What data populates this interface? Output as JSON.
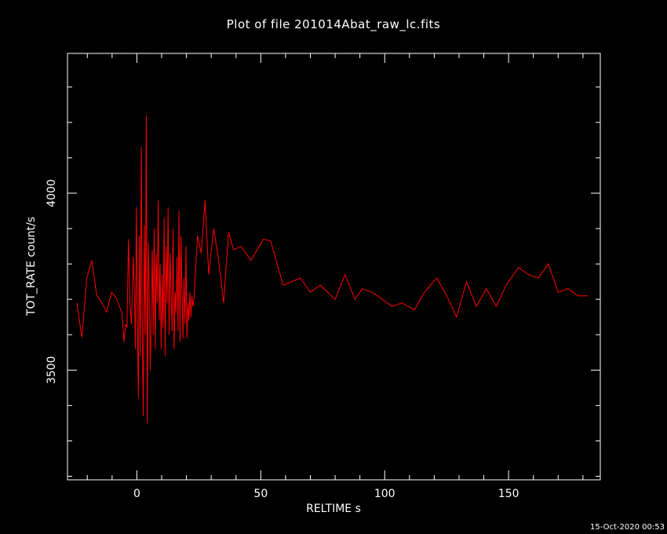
{
  "chart_data": {
    "type": "line",
    "title": "Plot of file 201014Abat_raw_lc.fits",
    "xlabel": "RELTIME   s",
    "ylabel": "TOT_RATE   count/s",
    "xlim": [
      -28,
      187
    ],
    "ylim": [
      3190,
      4395
    ],
    "xticks_major": [
      0,
      50,
      100,
      150
    ],
    "xtick_labels": [
      "0",
      "50",
      "100",
      "150"
    ],
    "yticks_major": [
      3500,
      4000
    ],
    "ytick_labels": [
      "3500",
      "4000"
    ],
    "grid": false,
    "line_color": "#ff0000",
    "background": "#000000",
    "axis_color": "#ffffff",
    "series": [
      {
        "x": [
          -24.2,
          -22.2,
          -20.2,
          -18.2,
          -16.2,
          -14.2,
          -12.2,
          -10.2,
          -8.2,
          -7.0,
          -6.0,
          -5.2,
          -4.5,
          -4.0,
          -3.4,
          -2.8,
          -2.2,
          -1.5,
          -1.0,
          -0.6,
          -0.2,
          0.2,
          0.6,
          1.0,
          1.4,
          1.8,
          2.2,
          2.6,
          3.0,
          3.4,
          3.8,
          4.2,
          4.6,
          5.0,
          5.4,
          5.8,
          6.2,
          6.6,
          7.0,
          7.4,
          7.8,
          8.2,
          8.6,
          9.0,
          9.4,
          9.8,
          10.2,
          10.6,
          11.0,
          11.4,
          11.8,
          12.2,
          12.6,
          13.0,
          13.4,
          13.8,
          14.2,
          14.6,
          15.0,
          15.4,
          15.8,
          16.2,
          16.6,
          17.0,
          17.4,
          17.8,
          18.2,
          18.6,
          19.0,
          19.4,
          19.8,
          20.2,
          20.6,
          21.0,
          21.4,
          21.8,
          22.2,
          22.6,
          23.0,
          24.5,
          26.0,
          27.5,
          29.0,
          31.0,
          33.0,
          35.0,
          37.0,
          39.0,
          42.0,
          46.0,
          51.0,
          54.0,
          59.0,
          66.0,
          70.0,
          74.0,
          80.0,
          84.0,
          88.0,
          91.0,
          95.0,
          99.0,
          103.0,
          107.0,
          112.0,
          116.0,
          121.0,
          125.0,
          129.0,
          133.0,
          137.0,
          141.0,
          145.0,
          149.0,
          154.0,
          158.0,
          162.0,
          166.0,
          170.0,
          174.0,
          178.0,
          182.0
        ],
        "y": [
          3690,
          3593,
          3760,
          3810,
          3712,
          3690,
          3664,
          3720,
          3703,
          3680,
          3660,
          3580,
          3630,
          3620,
          3870,
          3690,
          3630,
          3820,
          3720,
          3560,
          3960,
          3640,
          3420,
          3880,
          3540,
          4130,
          3590,
          3370,
          3910,
          3600,
          4220,
          3350,
          3860,
          3720,
          3500,
          3650,
          3840,
          3600,
          3900,
          3560,
          3830,
          3690,
          3980,
          3640,
          3800,
          3560,
          3770,
          3620,
          3930,
          3540,
          3850,
          3690,
          3960,
          3600,
          3830,
          3720,
          3610,
          3900,
          3560,
          3720,
          3660,
          3820,
          3610,
          3950,
          3580,
          3880,
          3720,
          3590,
          3760,
          3630,
          3850,
          3590,
          3690,
          3640,
          3720,
          3650,
          3710,
          3680,
          3700,
          3880,
          3830,
          3980,
          3770,
          3900,
          3810,
          3690,
          3890,
          3840,
          3850,
          3810,
          3870,
          3865,
          3740,
          3760,
          3720,
          3740,
          3700,
          3770,
          3700,
          3730,
          3720,
          3700,
          3680,
          3690,
          3670,
          3720,
          3760,
          3710,
          3650,
          3750,
          3680,
          3730,
          3680,
          3740,
          3790,
          3770,
          3760,
          3800,
          3720,
          3730,
          3710,
          3710
        ]
      }
    ]
  },
  "footer": {
    "timestamp": "15-Oct-2020 00:53"
  }
}
